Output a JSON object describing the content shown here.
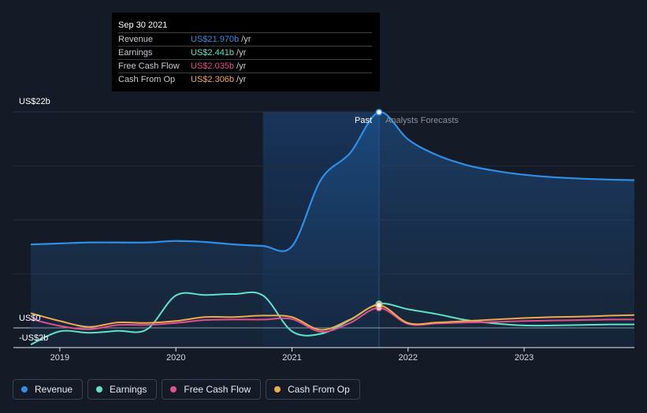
{
  "tooltip": {
    "date": "Sep 30 2021",
    "rows": [
      {
        "label": "Revenue",
        "value": "US$21.970b",
        "unit": "/yr",
        "color": "#2f8fe6"
      },
      {
        "label": "Earnings",
        "value": "US$2.441b",
        "unit": "/yr",
        "color": "#5fe3c6"
      },
      {
        "label": "Free Cash Flow",
        "value": "US$2.035b",
        "unit": "/yr",
        "color": "#e0508a"
      },
      {
        "label": "Cash From Op",
        "value": "US$2.306b",
        "unit": "/yr",
        "color": "#f0a94f"
      }
    ]
  },
  "labels": {
    "y_top": "US$22b",
    "y_zero": "US$0",
    "y_neg": "-US$2b",
    "past": "Past",
    "forecast": "Analysts Forecasts"
  },
  "legend": [
    {
      "label": "Revenue",
      "color": "#2f8fe6",
      "icon": "revenue-dot-icon"
    },
    {
      "label": "Earnings",
      "color": "#5fe3c6",
      "icon": "earnings-dot-icon"
    },
    {
      "label": "Free Cash Flow",
      "color": "#e0508a",
      "icon": "fcf-dot-icon"
    },
    {
      "label": "Cash From Op",
      "color": "#f0a94f",
      "icon": "cfo-dot-icon"
    }
  ],
  "chart_data": {
    "type": "line",
    "ylim": [
      -2,
      22
    ],
    "xlim": [
      2018.6,
      2023.95
    ],
    "xticks": [
      2019,
      2020,
      2021,
      2022,
      2023
    ],
    "highlight_range": [
      2020.75,
      2021.75
    ],
    "past_end": 2021.75,
    "grid": true,
    "series": [
      {
        "name": "Revenue",
        "color": "#2f8fe6",
        "fill": true,
        "x": [
          2018.75,
          2019.0,
          2019.25,
          2019.5,
          2019.75,
          2020.0,
          2020.25,
          2020.5,
          2020.75,
          2021.0,
          2021.25,
          2021.5,
          2021.75,
          2022.0,
          2022.25,
          2022.5,
          2022.75,
          2023.0,
          2023.25,
          2023.5,
          2023.75,
          2023.95
        ],
        "y": [
          8.5,
          8.6,
          8.7,
          8.7,
          8.7,
          8.85,
          8.75,
          8.5,
          8.35,
          8.3,
          15.1,
          17.8,
          21.97,
          19.2,
          17.6,
          16.6,
          16.0,
          15.6,
          15.35,
          15.2,
          15.1,
          15.05
        ]
      },
      {
        "name": "Earnings",
        "color": "#5fe3c6",
        "x": [
          2018.75,
          2019.0,
          2019.25,
          2019.5,
          2019.75,
          2020.0,
          2020.25,
          2020.5,
          2020.75,
          2021.0,
          2021.25,
          2021.5,
          2021.75,
          2022.0,
          2022.25,
          2022.5,
          2022.75,
          2023.0,
          2023.25,
          2023.5,
          2023.75,
          2023.95
        ],
        "y": [
          -1.7,
          -0.35,
          -0.5,
          -0.3,
          -0.15,
          3.3,
          3.35,
          3.45,
          3.3,
          -0.35,
          -0.6,
          0.8,
          2.441,
          1.9,
          1.4,
          0.8,
          0.45,
          0.25,
          0.25,
          0.3,
          0.35,
          0.35
        ]
      },
      {
        "name": "Free Cash Flow",
        "color": "#e0508a",
        "x": [
          2018.75,
          2019.0,
          2019.25,
          2019.5,
          2019.75,
          2020.0,
          2020.25,
          2020.5,
          2020.75,
          2021.0,
          2021.25,
          2021.5,
          2021.75,
          2022.0,
          2022.25,
          2022.5,
          2022.75,
          2023.0,
          2023.25,
          2023.5,
          2023.75,
          2023.95
        ],
        "y": [
          0.9,
          0.2,
          -0.15,
          0.3,
          0.3,
          0.5,
          0.8,
          0.85,
          0.85,
          0.9,
          -0.4,
          0.5,
          2.035,
          0.4,
          0.45,
          0.55,
          0.6,
          0.7,
          0.75,
          0.8,
          0.85,
          0.85
        ]
      },
      {
        "name": "Cash From Op",
        "color": "#f0a94f",
        "x": [
          2018.75,
          2019.0,
          2019.25,
          2019.5,
          2019.75,
          2020.0,
          2020.25,
          2020.5,
          2020.75,
          2021.0,
          2021.25,
          2021.5,
          2021.75,
          2022.0,
          2022.25,
          2022.5,
          2022.75,
          2023.0,
          2023.25,
          2023.5,
          2023.75,
          2023.95
        ],
        "y": [
          1.5,
          0.7,
          0.1,
          0.55,
          0.5,
          0.7,
          1.1,
          1.1,
          1.25,
          1.1,
          -0.2,
          0.85,
          2.306,
          0.5,
          0.55,
          0.7,
          0.85,
          1.0,
          1.1,
          1.15,
          1.25,
          1.3
        ]
      }
    ]
  }
}
